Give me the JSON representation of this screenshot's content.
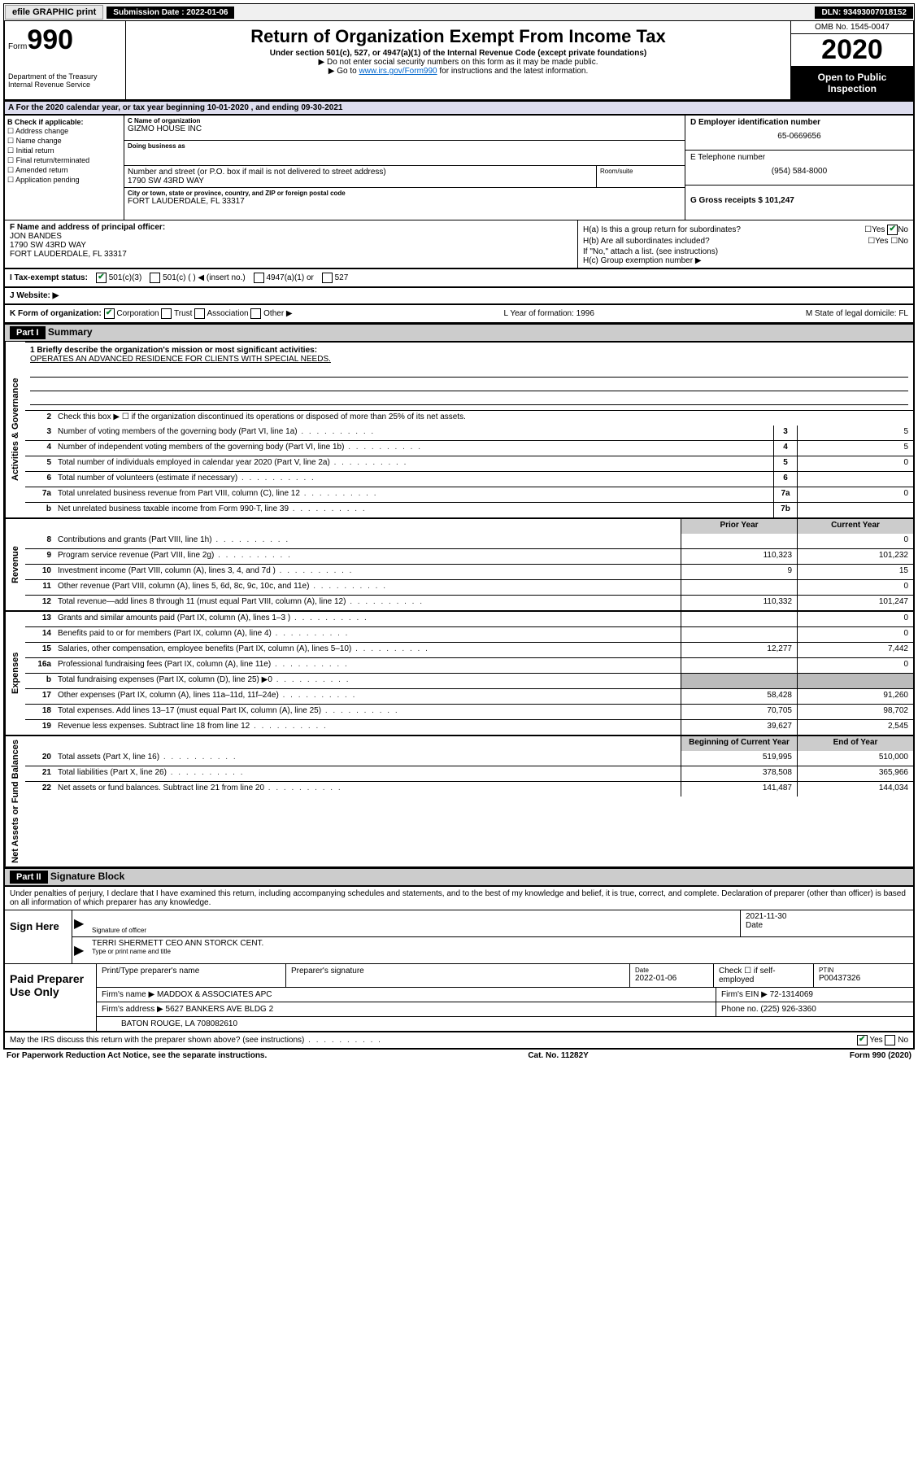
{
  "topbar": {
    "efile_label": "efile GRAPHIC print",
    "submission_label": "Submission Date : 2022-01-06",
    "dln_label": "DLN: 93493007018152"
  },
  "header": {
    "form_label": "Form",
    "form_number": "990",
    "dept": "Department of the Treasury\nInternal Revenue Service",
    "title": "Return of Organization Exempt From Income Tax",
    "subtitle": "Under section 501(c), 527, or 4947(a)(1) of the Internal Revenue Code (except private foundations)",
    "line1": "▶ Do not enter social security numbers on this form as it may be made public.",
    "line2_pre": "▶ Go to ",
    "line2_link": "www.irs.gov/Form990",
    "line2_post": " for instructions and the latest information.",
    "omb": "OMB No. 1545-0047",
    "year": "2020",
    "open_public": "Open to Public Inspection"
  },
  "section_a": "A For the 2020 calendar year, or tax year beginning 10-01-2020   , and ending 09-30-2021",
  "col_b": {
    "title": "B Check if applicable:",
    "opts": [
      "Address change",
      "Name change",
      "Initial return",
      "Final return/terminated",
      "Amended return",
      "Application pending"
    ]
  },
  "col_c": {
    "name_lbl": "C Name of organization",
    "name": "GIZMO HOUSE INC",
    "dba_lbl": "Doing business as",
    "dba": "",
    "addr_lbl": "Number and street (or P.O. box if mail is not delivered to street address)",
    "addr": "1790 SW 43RD WAY",
    "room_lbl": "Room/suite",
    "city_lbl": "City or town, state or province, country, and ZIP or foreign postal code",
    "city": "FORT LAUDERDALE, FL  33317"
  },
  "col_d": {
    "ein_lbl": "D Employer identification number",
    "ein": "65-0669656",
    "tel_lbl": "E Telephone number",
    "tel": "(954) 584-8000",
    "gross_lbl": "G Gross receipts $ 101,247"
  },
  "col_f": {
    "lbl": "F Name and address of principal officer:",
    "name": "JON BANDES",
    "addr1": "1790 SW 43RD WAY",
    "addr2": "FORT LAUDERDALE, FL  33317"
  },
  "col_h": {
    "ha": "H(a)  Is this a group return for subordinates?",
    "hb": "H(b)  Are all subordinates included?",
    "hb_note": "If \"No,\" attach a list. (see instructions)",
    "hc": "H(c)  Group exemption number ▶"
  },
  "status": {
    "lbl": "I   Tax-exempt status:",
    "opts": [
      "501(c)(3)",
      "501(c) (  ) ◀ (insert no.)",
      "4947(a)(1) or",
      "527"
    ]
  },
  "website_lbl": "J   Website: ▶",
  "k_row": {
    "form_org": "K Form of organization:",
    "opts": [
      "Corporation",
      "Trust",
      "Association",
      "Other ▶"
    ],
    "l_year": "L Year of formation: 1996",
    "m_state": "M State of legal domicile: FL"
  },
  "part1": {
    "header": "Part I",
    "title": "Summary",
    "q1_lbl": "1  Briefly describe the organization's mission or most significant activities:",
    "q1_val": "OPERATES AN ADVANCED RESIDENCE FOR CLIENTS WITH SPECIAL NEEDS.",
    "q2": "Check this box ▶ ☐  if the organization discontinued its operations or disposed of more than 25% of its net assets.",
    "rows_gov": [
      {
        "n": "3",
        "d": "Number of voting members of the governing body (Part VI, line 1a)",
        "box": "3",
        "v": "5"
      },
      {
        "n": "4",
        "d": "Number of independent voting members of the governing body (Part VI, line 1b)",
        "box": "4",
        "v": "5"
      },
      {
        "n": "5",
        "d": "Total number of individuals employed in calendar year 2020 (Part V, line 2a)",
        "box": "5",
        "v": "0"
      },
      {
        "n": "6",
        "d": "Total number of volunteers (estimate if necessary)",
        "box": "6",
        "v": ""
      },
      {
        "n": "7a",
        "d": "Total unrelated business revenue from Part VIII, column (C), line 12",
        "box": "7a",
        "v": "0"
      },
      {
        "n": "b",
        "d": "Net unrelated business taxable income from Form 990-T, line 39",
        "box": "7b",
        "v": ""
      }
    ],
    "col_headers": {
      "prior": "Prior Year",
      "curr": "Current Year"
    },
    "rows_rev": [
      {
        "n": "8",
        "d": "Contributions and grants (Part VIII, line 1h)",
        "p": "",
        "c": "0"
      },
      {
        "n": "9",
        "d": "Program service revenue (Part VIII, line 2g)",
        "p": "110,323",
        "c": "101,232"
      },
      {
        "n": "10",
        "d": "Investment income (Part VIII, column (A), lines 3, 4, and 7d )",
        "p": "9",
        "c": "15"
      },
      {
        "n": "11",
        "d": "Other revenue (Part VIII, column (A), lines 5, 6d, 8c, 9c, 10c, and 11e)",
        "p": "",
        "c": "0"
      },
      {
        "n": "12",
        "d": "Total revenue—add lines 8 through 11 (must equal Part VIII, column (A), line 12)",
        "p": "110,332",
        "c": "101,247"
      }
    ],
    "rows_exp": [
      {
        "n": "13",
        "d": "Grants and similar amounts paid (Part IX, column (A), lines 1–3 )",
        "p": "",
        "c": "0"
      },
      {
        "n": "14",
        "d": "Benefits paid to or for members (Part IX, column (A), line 4)",
        "p": "",
        "c": "0"
      },
      {
        "n": "15",
        "d": "Salaries, other compensation, employee benefits (Part IX, column (A), lines 5–10)",
        "p": "12,277",
        "c": "7,442"
      },
      {
        "n": "16a",
        "d": "Professional fundraising fees (Part IX, column (A), line 11e)",
        "p": "",
        "c": "0"
      },
      {
        "n": "b",
        "d": "Total fundraising expenses (Part IX, column (D), line 25) ▶0",
        "p": "grey",
        "c": "grey"
      },
      {
        "n": "17",
        "d": "Other expenses (Part IX, column (A), lines 11a–11d, 11f–24e)",
        "p": "58,428",
        "c": "91,260"
      },
      {
        "n": "18",
        "d": "Total expenses. Add lines 13–17 (must equal Part IX, column (A), line 25)",
        "p": "70,705",
        "c": "98,702"
      },
      {
        "n": "19",
        "d": "Revenue less expenses. Subtract line 18 from line 12",
        "p": "39,627",
        "c": "2,545"
      }
    ],
    "col_headers2": {
      "prior": "Beginning of Current Year",
      "curr": "End of Year"
    },
    "rows_net": [
      {
        "n": "20",
        "d": "Total assets (Part X, line 16)",
        "p": "519,995",
        "c": "510,000"
      },
      {
        "n": "21",
        "d": "Total liabilities (Part X, line 26)",
        "p": "378,508",
        "c": "365,966"
      },
      {
        "n": "22",
        "d": "Net assets or fund balances. Subtract line 21 from line 20",
        "p": "141,487",
        "c": "144,034"
      }
    ],
    "side_gov": "Activities & Governance",
    "side_rev": "Revenue",
    "side_exp": "Expenses",
    "side_net": "Net Assets or Fund Balances"
  },
  "part2": {
    "header": "Part II",
    "title": "Signature Block",
    "perjury": "Under penalties of perjury, I declare that I have examined this return, including accompanying schedules and statements, and to the best of my knowledge and belief, it is true, correct, and complete. Declaration of preparer (other than officer) is based on all information of which preparer has any knowledge.",
    "sign_here": "Sign Here",
    "sig_lbl": "Signature of officer",
    "sig_date": "2021-11-30",
    "date_lbl": "Date",
    "name_title": "TERRI SHERMETT CEO ANN STORCK CENT.",
    "type_lbl": "Type or print name and title",
    "paid_lbl": "Paid Preparer Use Only",
    "prep_name_lbl": "Print/Type preparer's name",
    "prep_sig_lbl": "Preparer's signature",
    "prep_date_lbl": "Date",
    "prep_date": "2022-01-06",
    "self_emp": "Check ☐ if self-employed",
    "ptin_lbl": "PTIN",
    "ptin": "P00437326",
    "firm_name_lbl": "Firm's name    ▶",
    "firm_name": "MADDOX & ASSOCIATES APC",
    "firm_ein_lbl": "Firm's EIN ▶",
    "firm_ein": "72-1314069",
    "firm_addr_lbl": "Firm's address ▶",
    "firm_addr": "5627 BANKERS AVE BLDG 2",
    "firm_city": "BATON ROUGE, LA  708082610",
    "phone_lbl": "Phone no.",
    "phone": "(225) 926-3360",
    "discuss": "May the IRS discuss this return with the preparer shown above? (see instructions)"
  },
  "footer": {
    "l": "For Paperwork Reduction Act Notice, see the separate instructions.",
    "c": "Cat. No. 11282Y",
    "r": "Form 990 (2020)"
  }
}
